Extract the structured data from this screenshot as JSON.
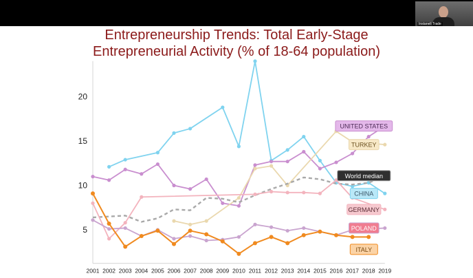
{
  "meeting": {
    "participant_name": "Instanell Trade"
  },
  "slide": {
    "title_line1": "Entrepreneurship Trends: Total Early-Stage",
    "title_line2": "Entrepreneurial Activity (% of 18-64 population)"
  },
  "chart_data": {
    "type": "line",
    "title": "Entrepreneurship Trends: Total Early-Stage Entrepreneurial Activity (% of 18-64 population)",
    "xlabel": "",
    "ylabel": "",
    "x": [
      2001,
      2002,
      2003,
      2004,
      2005,
      2006,
      2007,
      2008,
      2009,
      2010,
      2011,
      2012,
      2013,
      2014,
      2015,
      2016,
      2017,
      2018,
      2019
    ],
    "ylim": [
      2,
      24
    ],
    "yticks": [
      5,
      10,
      15,
      20
    ],
    "grid": false,
    "legend": "labels at line ends (right)",
    "series": [
      {
        "name": "CHINA",
        "color": "#7fd3ef",
        "label_fill": "#b9e8f8",
        "label_text": "#3b5566",
        "label_y": 9.1,
        "dashed": false,
        "points": [
          [
            2002,
            12.1
          ],
          [
            2003,
            12.9
          ],
          [
            2005,
            13.7
          ],
          [
            2006,
            15.9
          ],
          [
            2007,
            16.4
          ],
          [
            2009,
            18.8
          ],
          [
            2010,
            14.4
          ],
          [
            2011,
            24.0
          ],
          [
            2012,
            12.8
          ],
          [
            2013,
            14.0
          ],
          [
            2014,
            15.5
          ],
          [
            2015,
            12.8
          ],
          [
            2016,
            10.3
          ],
          [
            2017,
            9.9
          ],
          [
            2018,
            10.3
          ],
          [
            2019,
            9.1
          ]
        ]
      },
      {
        "name": "UNITED STATES",
        "color": "#c98ecf",
        "label_fill": "#e4b8ea",
        "label_text": "#4b2a55",
        "label_y": 16.7,
        "dashed": false,
        "points": [
          [
            2001,
            11.0
          ],
          [
            2002,
            10.6
          ],
          [
            2003,
            11.8
          ],
          [
            2004,
            11.3
          ],
          [
            2005,
            12.4
          ],
          [
            2006,
            10.0
          ],
          [
            2007,
            9.6
          ],
          [
            2008,
            10.7
          ],
          [
            2009,
            8.0
          ],
          [
            2010,
            7.7
          ],
          [
            2011,
            12.3
          ],
          [
            2012,
            12.7
          ],
          [
            2013,
            12.7
          ],
          [
            2014,
            13.8
          ],
          [
            2015,
            11.9
          ],
          [
            2016,
            12.6
          ],
          [
            2017,
            13.6
          ],
          [
            2018,
            15.5
          ],
          [
            2019,
            16.7
          ]
        ]
      },
      {
        "name": "TURKEY",
        "color": "#ead8ae",
        "label_fill": "#f7e8c6",
        "label_text": "#6b5120",
        "label_y": 14.6,
        "dashed": false,
        "points": [
          [
            2006,
            6.0
          ],
          [
            2007,
            5.6
          ],
          [
            2008,
            6.0
          ],
          [
            2010,
            8.6
          ],
          [
            2011,
            11.9
          ],
          [
            2012,
            12.2
          ],
          [
            2013,
            10.0
          ],
          [
            2016,
            16.1
          ],
          [
            2017,
            14.9
          ],
          [
            2019,
            14.6
          ]
        ]
      },
      {
        "name": "World median",
        "color": "#a9a9a9",
        "label_fill": "#2f2f2f",
        "label_text": "#ffffff",
        "label_y": 11.1,
        "dashed": true,
        "points": [
          [
            2001,
            6.4
          ],
          [
            2002,
            6.5
          ],
          [
            2003,
            6.6
          ],
          [
            2004,
            5.9
          ],
          [
            2005,
            6.3
          ],
          [
            2006,
            7.3
          ],
          [
            2007,
            7.2
          ],
          [
            2008,
            8.6
          ],
          [
            2009,
            8.5
          ],
          [
            2010,
            8.1
          ],
          [
            2011,
            8.9
          ],
          [
            2012,
            9.6
          ],
          [
            2013,
            10.2
          ],
          [
            2014,
            10.9
          ],
          [
            2015,
            10.7
          ],
          [
            2016,
            10.2
          ],
          [
            2017,
            10.1
          ],
          [
            2018,
            10.3
          ],
          [
            2019,
            11.1
          ]
        ]
      },
      {
        "name": "GERMANY",
        "color": "#f3b3bd",
        "label_fill": "#f6c9cf",
        "label_text": "#5a2a33",
        "label_y": 7.3,
        "dashed": false,
        "points": [
          [
            2001,
            8.0
          ],
          [
            2002,
            4.0
          ],
          [
            2003,
            5.8
          ],
          [
            2004,
            8.7
          ],
          [
            2011,
            9.0
          ],
          [
            2012,
            9.3
          ],
          [
            2013,
            9.2
          ],
          [
            2014,
            9.2
          ],
          [
            2015,
            9.1
          ],
          [
            2016,
            10.6
          ],
          [
            2017,
            8.6
          ],
          [
            2019,
            7.3
          ]
        ]
      },
      {
        "name": "POLAND",
        "color": "#c9a4cf",
        "label_fill": "#f07c90",
        "label_text": "#ffffff",
        "label_y": 5.2,
        "dashed": false,
        "points": [
          [
            2001,
            6.1
          ],
          [
            2002,
            5.1
          ],
          [
            2003,
            5.2
          ],
          [
            2004,
            4.3
          ],
          [
            2005,
            5.0
          ],
          [
            2006,
            4.0
          ],
          [
            2007,
            4.3
          ],
          [
            2008,
            3.8
          ],
          [
            2009,
            3.9
          ],
          [
            2010,
            4.2
          ],
          [
            2011,
            5.6
          ],
          [
            2012,
            5.3
          ],
          [
            2013,
            4.9
          ],
          [
            2014,
            5.2
          ],
          [
            2015,
            4.8
          ],
          [
            2016,
            4.4
          ],
          [
            2017,
            5.0
          ],
          [
            2018,
            5.1
          ],
          [
            2019,
            5.2
          ]
        ]
      },
      {
        "name": "ITALY",
        "color": "#f08a1f",
        "label_fill": "#fbd3a6",
        "label_text": "#7a4a10",
        "label_y": 2.8,
        "dashed": false,
        "points": [
          [
            2001,
            9.1
          ],
          [
            2002,
            5.7
          ],
          [
            2003,
            3.1
          ],
          [
            2004,
            4.3
          ],
          [
            2005,
            4.9
          ],
          [
            2006,
            3.4
          ],
          [
            2007,
            4.9
          ],
          [
            2008,
            4.5
          ],
          [
            2009,
            3.7
          ],
          [
            2010,
            2.3
          ],
          [
            2011,
            3.5
          ],
          [
            2012,
            4.2
          ],
          [
            2013,
            3.5
          ],
          [
            2014,
            4.4
          ],
          [
            2015,
            4.8
          ],
          [
            2016,
            4.4
          ],
          [
            2017,
            4.2
          ],
          [
            2018,
            4.2
          ]
        ]
      }
    ]
  }
}
